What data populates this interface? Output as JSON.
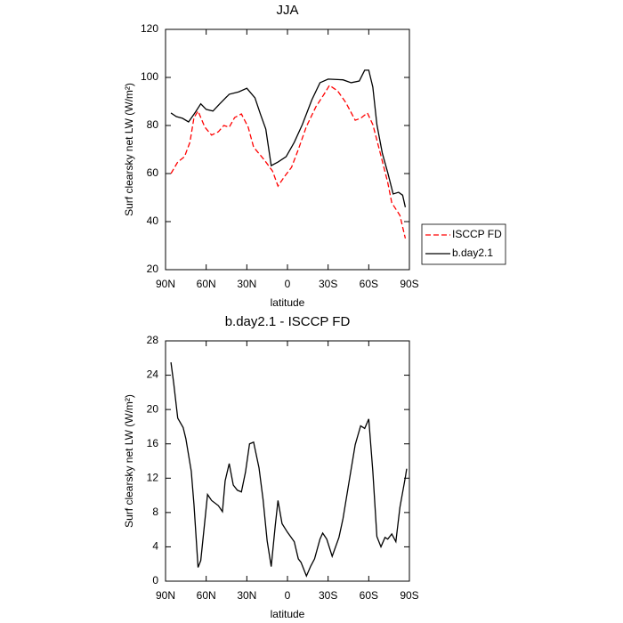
{
  "chart_data": [
    {
      "type": "line",
      "title": "JJA",
      "xlabel": "latitude",
      "ylabel": "Surf clearsky net LW (W/m²)",
      "xlim": [
        90,
        -90
      ],
      "xticks": [
        {
          "value": 90,
          "label": "90N"
        },
        {
          "value": 60,
          "label": "60N"
        },
        {
          "value": 30,
          "label": "30N"
        },
        0,
        {
          "value": -30,
          "label": "30S"
        },
        {
          "value": -60,
          "label": "60S"
        },
        {
          "value": -90,
          "label": "90S"
        }
      ],
      "ylim": [
        20,
        120
      ],
      "yticks": [
        20,
        40,
        60,
        80,
        100,
        120
      ],
      "legend": "outside-right",
      "series": [
        {
          "name": "ISCCP FD",
          "color": "#ff0000",
          "line_style": "dashed",
          "x": [
            86,
            81,
            76,
            72,
            69,
            66,
            61,
            56,
            51,
            47,
            43,
            39,
            34,
            29,
            25,
            17,
            11,
            7,
            2,
            -3,
            -8,
            -14,
            -21,
            -27,
            -31,
            -37,
            -43,
            -50,
            -54,
            -59,
            -63,
            -69,
            -74,
            -77,
            -83,
            -87
          ],
          "values": [
            60,
            64.8,
            67,
            73,
            83.3,
            86,
            79.3,
            76,
            77.4,
            80,
            79.3,
            83.3,
            84.8,
            79.3,
            71,
            65.6,
            61,
            54.8,
            58.9,
            62.6,
            70,
            79.6,
            87.8,
            93,
            96.7,
            94.4,
            89.6,
            82.2,
            83,
            85.2,
            80.4,
            67.4,
            56.3,
            47.8,
            42.6,
            33
          ]
        },
        {
          "name": "b.day2.1",
          "color": "#000000",
          "line_style": "solid",
          "x": [
            86,
            82,
            77.5,
            73,
            68,
            64,
            60,
            55,
            50,
            43,
            36,
            30,
            24,
            20,
            16,
            12,
            7,
            1,
            -5,
            -11,
            -18,
            -24,
            -30,
            -41,
            -47,
            -53,
            -57,
            -60,
            -63,
            -66,
            -70,
            -74,
            -78,
            -82,
            -85,
            -87
          ],
          "values": [
            85.2,
            83.7,
            83,
            81.5,
            85.5,
            89,
            86.7,
            86,
            89,
            93,
            94,
            95.5,
            91.5,
            84.8,
            78.5,
            63.3,
            64.8,
            67,
            73,
            80.4,
            90.7,
            97.8,
            99.3,
            99,
            97.8,
            98.5,
            103,
            103,
            96,
            80.4,
            68.5,
            60.4,
            51.5,
            52.2,
            51,
            46
          ]
        }
      ]
    },
    {
      "type": "line",
      "title": "b.day2.1 - ISCCP FD",
      "xlabel": "latitude",
      "ylabel": "Surf clearsky net LW (W/m²)",
      "xlim": [
        90,
        -90
      ],
      "xticks": [
        {
          "value": 90,
          "label": "90N"
        },
        {
          "value": 60,
          "label": "60N"
        },
        {
          "value": 30,
          "label": "30N"
        },
        0,
        {
          "value": -30,
          "label": "30S"
        },
        {
          "value": -60,
          "label": "60S"
        },
        {
          "value": -90,
          "label": "90S"
        }
      ],
      "ylim": [
        0,
        28
      ],
      "yticks": [
        0,
        4,
        8,
        12,
        16,
        20,
        24,
        28
      ],
      "series": [
        {
          "color": "#000000",
          "line_style": "solid",
          "x": [
            86,
            84,
            81,
            77,
            75,
            71,
            69,
            66,
            64,
            61,
            59,
            56,
            51,
            48,
            46,
            43,
            40,
            37,
            34,
            31,
            28,
            25,
            21,
            18,
            15,
            12,
            9,
            7,
            4,
            0,
            -5,
            -8,
            -10,
            -14,
            -17,
            -20,
            -24,
            -26,
            -29,
            -32,
            -33,
            -38,
            -41,
            -46,
            -50,
            -54,
            -57,
            -60,
            -63,
            -66,
            -69,
            -72,
            -74,
            -77,
            -80,
            -83,
            -87,
            -88
          ],
          "values": [
            25.5,
            23.1,
            19,
            17.9,
            16.6,
            12.8,
            8.9,
            1.6,
            2.4,
            7,
            10.1,
            9.4,
            8.8,
            8.1,
            11.7,
            13.7,
            11.2,
            10.6,
            10.4,
            12.7,
            16,
            16.2,
            13.2,
            9.5,
            4.7,
            1.7,
            6.5,
            9.4,
            6.7,
            5.7,
            4.6,
            2.6,
            2.2,
            0.6,
            1.7,
            2.6,
            4.9,
            5.6,
            4.9,
            3.4,
            2.9,
            5.1,
            7.3,
            12.1,
            15.9,
            18.1,
            17.8,
            18.9,
            12.8,
            5.2,
            4,
            5.1,
            4.9,
            5.5,
            4.6,
            8.6,
            12.1,
            13.1
          ]
        }
      ]
    }
  ]
}
